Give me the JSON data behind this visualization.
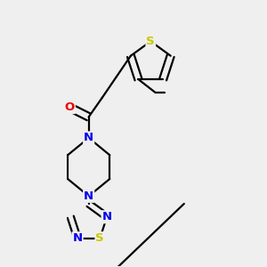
{
  "bg_color": "#efefef",
  "bond_color": "#000000",
  "bond_width": 1.6,
  "atom_colors": {
    "S": "#c8c800",
    "N": "#0000ee",
    "O": "#ee0000",
    "C": "#000000"
  },
  "figsize": [
    3.0,
    3.0
  ],
  "dpi": 100
}
